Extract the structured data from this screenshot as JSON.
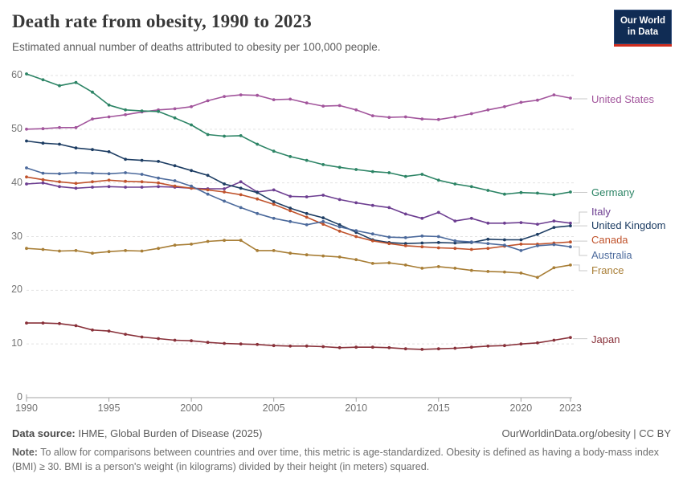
{
  "header": {
    "title": "Death rate from obesity, 1990 to 2023",
    "subtitle": "Estimated annual number of deaths attributed to obesity per 100,000 people.",
    "logo_line1": "Our World",
    "logo_line2": "in Data"
  },
  "chart_data": {
    "type": "line",
    "title": "Death rate from obesity, 1990 to 2023",
    "subtitle": "Estimated annual number of deaths attributed to obesity per 100,000 people.",
    "xlabel": "",
    "ylabel": "",
    "ylim": [
      0,
      60
    ],
    "y_ticks": [
      0,
      10,
      20,
      30,
      40,
      50,
      60
    ],
    "x_ticks": [
      1990,
      1995,
      2000,
      2005,
      2010,
      2015,
      2020,
      2023
    ],
    "x_range": [
      1990,
      2023
    ],
    "grid": "horizontal-dashed",
    "legend_position": "right",
    "x": [
      1990,
      1991,
      1992,
      1993,
      1994,
      1995,
      1996,
      1997,
      1998,
      1999,
      2000,
      2001,
      2002,
      2003,
      2004,
      2005,
      2006,
      2007,
      2008,
      2009,
      2010,
      2011,
      2012,
      2013,
      2014,
      2015,
      2016,
      2017,
      2018,
      2019,
      2020,
      2021,
      2022,
      2023
    ],
    "series": [
      {
        "name": "United States",
        "color": "#A2559C",
        "values": [
          50.0,
          50.1,
          50.3,
          50.3,
          51.9,
          52.3,
          52.7,
          53.2,
          53.6,
          53.8,
          54.2,
          55.3,
          56.1,
          56.4,
          56.3,
          55.5,
          55.6,
          54.9,
          54.3,
          54.4,
          53.6,
          52.5,
          52.2,
          52.3,
          51.9,
          51.8,
          52.3,
          52.9,
          53.6,
          54.2,
          55.0,
          55.4,
          56.4,
          55.8
        ]
      },
      {
        "name": "Germany",
        "color": "#2C8465",
        "values": [
          60.3,
          59.2,
          58.1,
          58.7,
          56.9,
          54.5,
          53.6,
          53.4,
          53.3,
          52.1,
          50.8,
          49.0,
          48.7,
          48.8,
          47.2,
          45.9,
          44.9,
          44.2,
          43.4,
          42.9,
          42.5,
          42.1,
          41.9,
          41.2,
          41.6,
          40.5,
          39.8,
          39.3,
          38.6,
          37.9,
          38.2,
          38.1,
          37.8,
          38.3
        ]
      },
      {
        "name": "Italy",
        "color": "#6D3E91",
        "values": [
          39.8,
          40.0,
          39.3,
          39.0,
          39.2,
          39.3,
          39.2,
          39.2,
          39.3,
          39.2,
          39.0,
          38.9,
          38.9,
          40.2,
          38.3,
          38.7,
          37.5,
          37.4,
          37.7,
          36.9,
          36.3,
          35.8,
          35.4,
          34.2,
          33.4,
          34.5,
          32.9,
          33.4,
          32.5,
          32.5,
          32.6,
          32.3,
          32.9,
          32.5
        ]
      },
      {
        "name": "United Kingdom",
        "color": "#1D3D63",
        "values": [
          47.8,
          47.4,
          47.2,
          46.5,
          46.2,
          45.8,
          44.4,
          44.2,
          44.0,
          43.2,
          42.3,
          41.4,
          39.8,
          39.0,
          38.2,
          36.5,
          35.3,
          34.3,
          33.5,
          32.2,
          30.8,
          29.4,
          28.9,
          28.7,
          28.8,
          28.9,
          28.8,
          28.9,
          29.5,
          29.4,
          29.4,
          30.4,
          31.7,
          32.0
        ]
      },
      {
        "name": "Canada",
        "color": "#C0532C",
        "values": [
          41.1,
          40.6,
          40.2,
          39.9,
          40.2,
          40.5,
          40.3,
          40.2,
          40.0,
          39.4,
          39.0,
          38.7,
          38.3,
          37.8,
          37.0,
          36.0,
          34.8,
          33.6,
          32.3,
          31.0,
          30.0,
          29.2,
          28.7,
          28.3,
          28.1,
          27.9,
          27.8,
          27.6,
          27.8,
          28.2,
          28.6,
          28.6,
          28.8,
          29.0
        ]
      },
      {
        "name": "Australia",
        "color": "#4C6A9C",
        "values": [
          42.8,
          41.8,
          41.7,
          41.9,
          41.8,
          41.7,
          41.9,
          41.6,
          40.9,
          40.4,
          39.4,
          37.9,
          36.6,
          35.4,
          34.3,
          33.4,
          32.8,
          32.2,
          32.8,
          31.8,
          31.1,
          30.5,
          29.9,
          29.8,
          30.1,
          30.0,
          29.2,
          29.0,
          28.7,
          28.4,
          27.4,
          28.3,
          28.5,
          28.1
        ]
      },
      {
        "name": "France",
        "color": "#A87E36",
        "values": [
          27.8,
          27.6,
          27.3,
          27.4,
          26.9,
          27.2,
          27.4,
          27.3,
          27.8,
          28.4,
          28.6,
          29.1,
          29.3,
          29.3,
          27.4,
          27.4,
          26.9,
          26.6,
          26.4,
          26.2,
          25.7,
          25.0,
          25.1,
          24.7,
          24.1,
          24.4,
          24.1,
          23.7,
          23.5,
          23.4,
          23.2,
          22.4,
          24.2,
          24.7
        ]
      },
      {
        "name": "Japan",
        "color": "#883039",
        "values": [
          13.9,
          13.9,
          13.8,
          13.4,
          12.6,
          12.4,
          11.8,
          11.3,
          11.0,
          10.7,
          10.6,
          10.3,
          10.1,
          10.0,
          9.9,
          9.7,
          9.6,
          9.6,
          9.5,
          9.3,
          9.4,
          9.4,
          9.3,
          9.1,
          9.0,
          9.1,
          9.2,
          9.4,
          9.6,
          9.7,
          10.0,
          10.2,
          10.7,
          11.2
        ]
      }
    ]
  },
  "footer": {
    "source_label": "Data source:",
    "source_text": " IHME, Global Burden of Disease (2025)",
    "link_text": "OurWorldinData.org/obesity",
    "separator": " | ",
    "license_text": "CC BY",
    "note_label": "Note:",
    "note_text": " To allow for comparisons between countries and over time, this metric is age-standardized. Obesity is defined as having a body-mass index (BMI) ≥ 30. BMI is a person's weight (in kilograms) divided by their height (in meters) squared."
  }
}
